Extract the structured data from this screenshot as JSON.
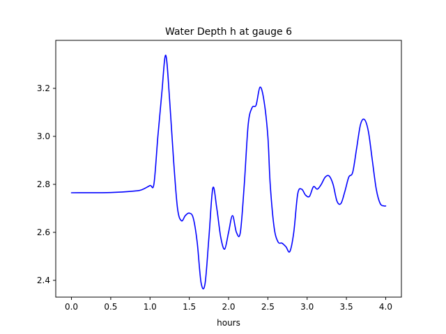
{
  "chart_data": {
    "type": "line",
    "title": "Water Depth h at gauge 6",
    "xlabel": "hours",
    "ylabel": "",
    "xlim": [
      -0.2,
      4.2
    ],
    "ylim": [
      2.33,
      3.4
    ],
    "xticks": [
      0.0,
      0.5,
      1.0,
      1.5,
      2.0,
      2.5,
      3.0,
      3.5,
      4.0
    ],
    "xtick_labels": [
      "0.0",
      "0.5",
      "1.0",
      "1.5",
      "2.0",
      "2.5",
      "3.0",
      "3.5",
      "4.0"
    ],
    "yticks": [
      2.4,
      2.6,
      2.8,
      3.0,
      3.2
    ],
    "ytick_labels": [
      "2.4",
      "2.6",
      "2.8",
      "3.0",
      "3.2"
    ],
    "grid": false,
    "legend": "none",
    "series": [
      {
        "name": "",
        "color": "#0000ff",
        "x": [
          0.0,
          0.5,
          0.8,
          0.9,
          1.0,
          1.05,
          1.1,
          1.15,
          1.2,
          1.25,
          1.3,
          1.35,
          1.4,
          1.45,
          1.5,
          1.55,
          1.6,
          1.65,
          1.7,
          1.75,
          1.8,
          1.85,
          1.9,
          1.95,
          2.0,
          2.05,
          2.1,
          2.15,
          2.2,
          2.25,
          2.3,
          2.35,
          2.4,
          2.45,
          2.5,
          2.53,
          2.58,
          2.63,
          2.68,
          2.73,
          2.78,
          2.83,
          2.88,
          2.93,
          2.98,
          3.03,
          3.08,
          3.13,
          3.18,
          3.23,
          3.28,
          3.33,
          3.38,
          3.43,
          3.48,
          3.53,
          3.58,
          3.63,
          3.68,
          3.73,
          3.78,
          3.83,
          3.88,
          3.93,
          3.98,
          4.0
        ],
        "y": [
          2.765,
          2.766,
          2.772,
          2.778,
          2.795,
          2.802,
          3.0,
          3.18,
          3.338,
          3.15,
          2.9,
          2.7,
          2.648,
          2.67,
          2.68,
          2.66,
          2.56,
          2.39,
          2.385,
          2.58,
          2.785,
          2.7,
          2.58,
          2.53,
          2.6,
          2.67,
          2.6,
          2.6,
          2.8,
          3.05,
          3.12,
          3.13,
          3.205,
          3.15,
          3.0,
          2.8,
          2.62,
          2.56,
          2.555,
          2.54,
          2.52,
          2.6,
          2.76,
          2.78,
          2.755,
          2.75,
          2.79,
          2.78,
          2.8,
          2.83,
          2.835,
          2.8,
          2.73,
          2.72,
          2.77,
          2.83,
          2.85,
          2.95,
          3.05,
          3.07,
          3.02,
          2.9,
          2.78,
          2.72,
          2.71,
          2.71
        ]
      }
    ]
  }
}
